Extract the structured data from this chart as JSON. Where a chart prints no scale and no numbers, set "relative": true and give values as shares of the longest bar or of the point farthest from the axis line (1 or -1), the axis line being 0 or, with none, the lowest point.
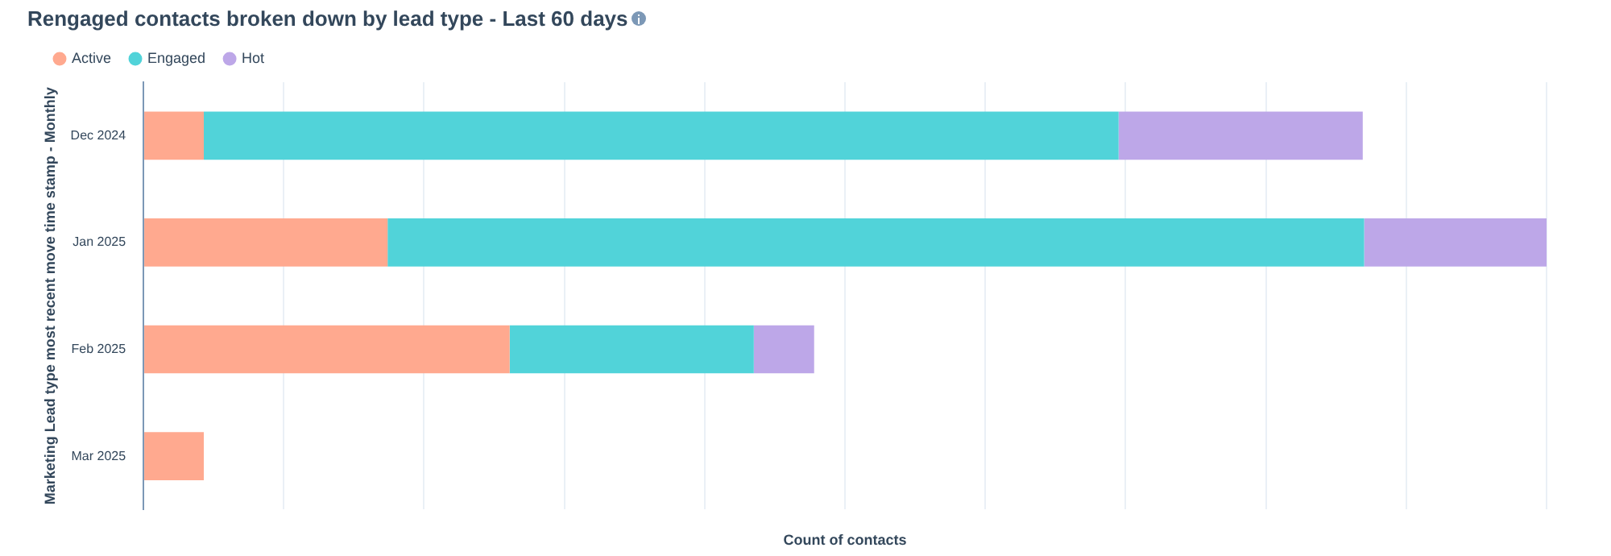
{
  "chart_data": {
    "type": "bar",
    "orientation": "horizontal",
    "stacked": true,
    "relative": true,
    "title": "Rengaged contacts broken down by lead type - Last 60 days",
    "xlabel": "Count of contacts",
    "ylabel": "Marketing Lead type most recent move time stamp - Monthly",
    "categories": [
      "Dec 2024",
      "Jan 2025",
      "Feb 2025",
      "Mar 2025"
    ],
    "series": [
      {
        "name": "Active",
        "color": "#ffa98f",
        "values": [
          0.043,
          0.174,
          0.261,
          0.043
        ]
      },
      {
        "name": "Engaged",
        "color": "#51d3d9",
        "values": [
          0.652,
          0.696,
          0.174,
          null
        ]
      },
      {
        "name": "Hot",
        "color": "#bda7e8",
        "values": [
          0.174,
          0.13,
          0.043,
          null
        ]
      }
    ],
    "grid": "x",
    "legend": "top left"
  }
}
